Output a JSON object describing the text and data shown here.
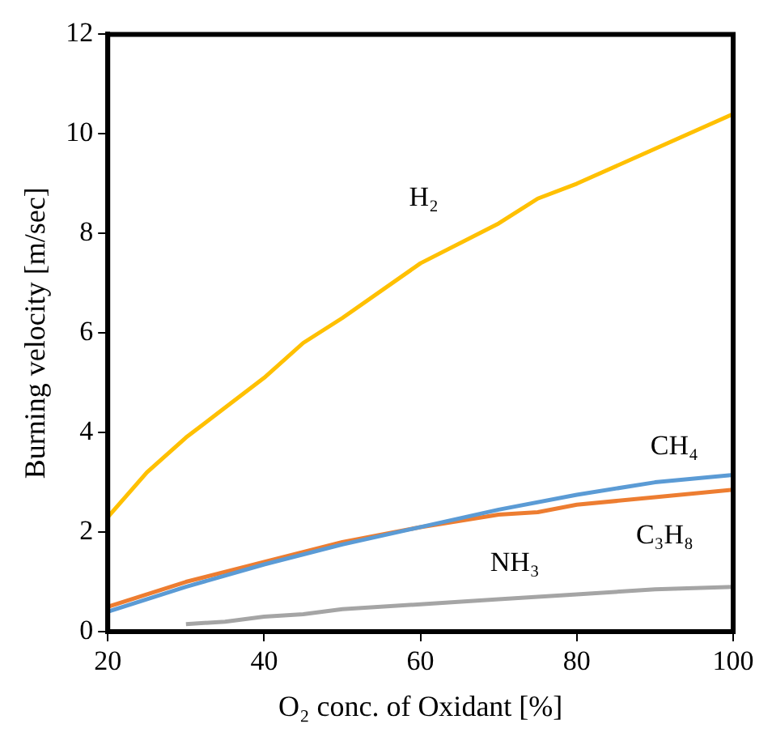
{
  "chart_data": {
    "type": "line",
    "xlabel": "O₂ conc. of Oxidant [%]",
    "ylabel": "Burning velocity [m/sec]",
    "xlim": [
      20,
      100
    ],
    "xticks": [
      20,
      40,
      60,
      80,
      100
    ],
    "ylim": [
      0,
      12
    ],
    "yticks": [
      0,
      2,
      4,
      6,
      8,
      10,
      12
    ],
    "grid": false,
    "legend": false,
    "marker": "none",
    "line_style": "solid",
    "series": [
      {
        "name": "H₂",
        "color": "#ffc000",
        "x": [
          20,
          25,
          30,
          40,
          45,
          50,
          60,
          70,
          75,
          80,
          90,
          100
        ],
        "values": [
          2.3,
          3.2,
          3.9,
          5.1,
          5.8,
          6.3,
          7.4,
          8.2,
          8.7,
          9.0,
          9.7,
          10.4
        ]
      },
      {
        "name": "CH₄",
        "color": "#5b9bd5",
        "x": [
          20,
          30,
          40,
          50,
          60,
          70,
          80,
          90,
          100
        ],
        "values": [
          0.4,
          0.9,
          1.35,
          1.75,
          2.1,
          2.45,
          2.75,
          3.0,
          3.15
        ]
      },
      {
        "name": "C₃H₈",
        "color": "#ed7d31",
        "x": [
          20,
          30,
          40,
          50,
          60,
          70,
          75,
          80,
          90,
          100
        ],
        "values": [
          0.5,
          1.0,
          1.4,
          1.8,
          2.1,
          2.35,
          2.4,
          2.55,
          2.7,
          2.85
        ]
      },
      {
        "name": "NH₃",
        "color": "#a5a5a5",
        "x": [
          30,
          35,
          40,
          45,
          50,
          60,
          70,
          80,
          90,
          100
        ],
        "values": [
          0.15,
          0.2,
          0.3,
          0.35,
          0.45,
          0.55,
          0.65,
          0.75,
          0.85,
          0.9
        ]
      }
    ]
  }
}
